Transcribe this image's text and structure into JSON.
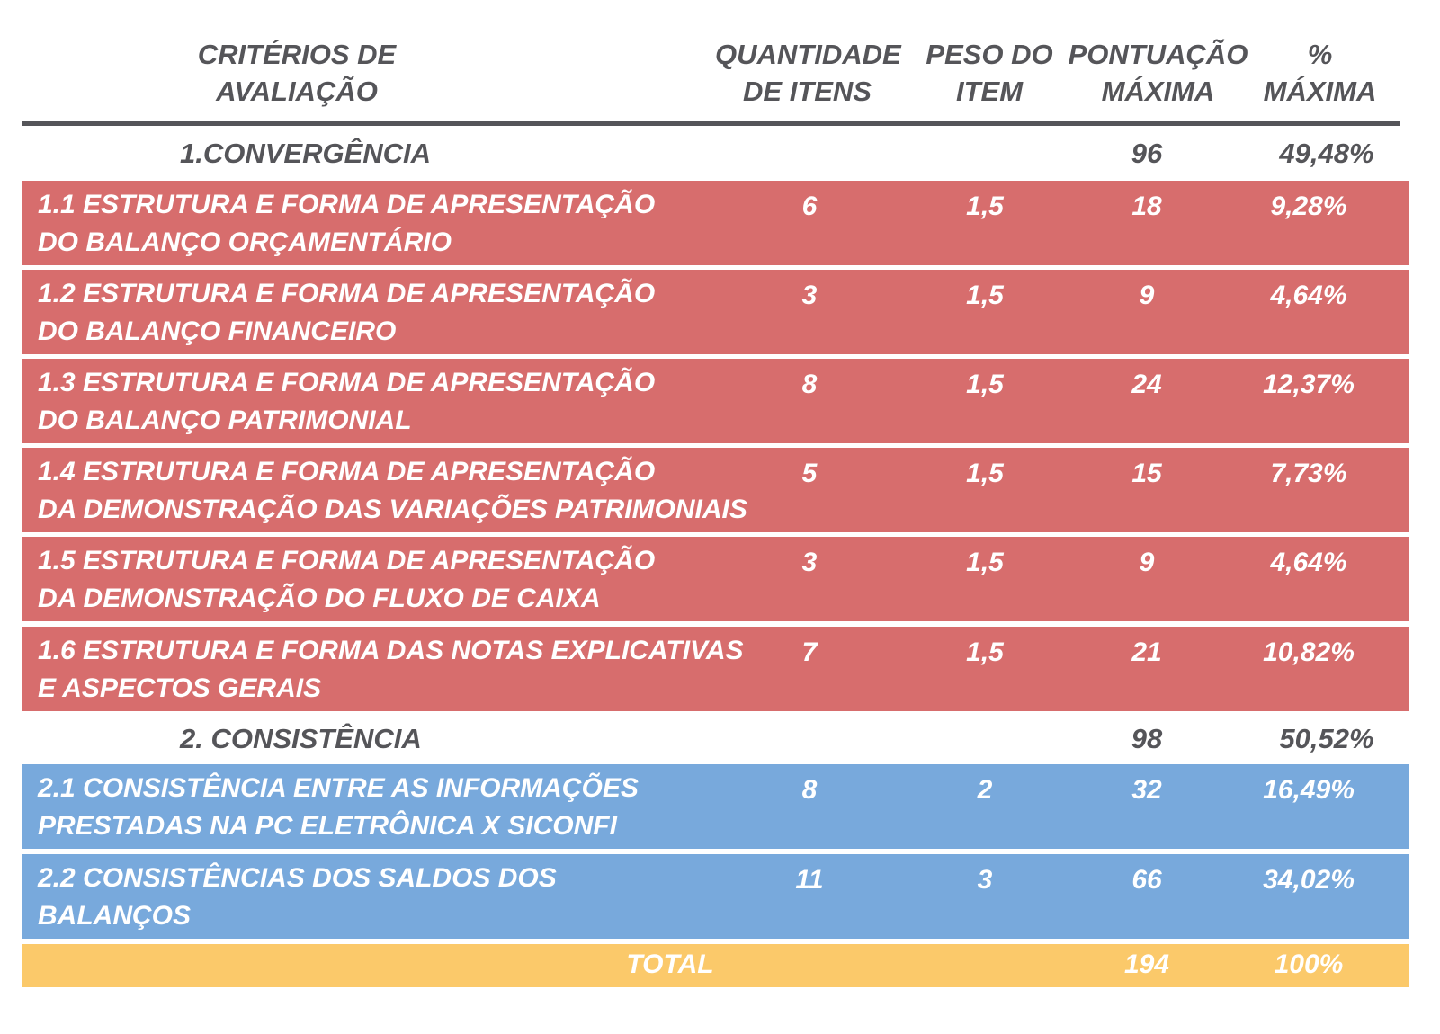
{
  "header": {
    "criterios": [
      "CRITÉRIOS DE",
      "AVALIAÇÃO"
    ],
    "quantidade": [
      "QUANTIDADE",
      "DE ITENS"
    ],
    "peso": [
      "PESO DO",
      "ITEM"
    ],
    "pontuacao": [
      "PONTUAÇÃO",
      "MÁXIMA"
    ],
    "percentual": [
      "%",
      "MÁXIMA"
    ]
  },
  "sections": [
    {
      "title": "1.CONVERGÊNCIA",
      "pontuacao": "96",
      "percentual": "49,48%",
      "color": "#d76d6d",
      "items": [
        {
          "line1": "1.1 ESTRUTURA E FORMA DE APRESENTAÇÃO",
          "line2": "DO BALANÇO ORÇAMENTÁRIO",
          "quantidade": "6",
          "peso": "1,5",
          "pontuacao": "18",
          "percentual": "9,28%"
        },
        {
          "line1": "1.2 ESTRUTURA E FORMA DE APRESENTAÇÃO",
          "line2": "DO BALANÇO FINANCEIRO",
          "quantidade": "3",
          "peso": "1,5",
          "pontuacao": "9",
          "percentual": "4,64%"
        },
        {
          "line1": "1.3 ESTRUTURA E FORMA DE APRESENTAÇÃO",
          "line2": "DO BALANÇO PATRIMONIAL",
          "quantidade": "8",
          "peso": "1,5",
          "pontuacao": "24",
          "percentual": "12,37%"
        },
        {
          "line1": "1.4 ESTRUTURA E FORMA DE APRESENTAÇÃO",
          "line2": "DA DEMONSTRAÇÃO DAS VARIAÇÕES PATRIMONIAIS",
          "quantidade": "5",
          "peso": "1,5",
          "pontuacao": "15",
          "percentual": "7,73%"
        },
        {
          "line1": "1.5 ESTRUTURA E FORMA DE APRESENTAÇÃO",
          "line2": "DA DEMONSTRAÇÃO DO FLUXO DE CAIXA",
          "quantidade": "3",
          "peso": "1,5",
          "pontuacao": "9",
          "percentual": "4,64%"
        },
        {
          "line1": "1.6 ESTRUTURA E FORMA DAS NOTAS EXPLICATIVAS",
          "line2": "E ASPECTOS GERAIS",
          "quantidade": "7",
          "peso": "1,5",
          "pontuacao": "21",
          "percentual": "10,82%"
        }
      ]
    },
    {
      "title": "2. CONSISTÊNCIA",
      "pontuacao": "98",
      "percentual": "50,52%",
      "color": "#78a9dc",
      "items": [
        {
          "line1": "2.1 CONSISTÊNCIA ENTRE AS INFORMAÇÕES",
          "line2": "PRESTADAS NA PC ELETRÔNICA X SICONFI",
          "quantidade": "8",
          "peso": "2",
          "pontuacao": "32",
          "percentual": "16,49%"
        },
        {
          "line1": "2.2 CONSISTÊNCIAS DOS SALDOS DOS",
          "line2": "BALANÇOS",
          "quantidade": "11",
          "peso": "3",
          "pontuacao": "66",
          "percentual": "34,02%"
        }
      ]
    }
  ],
  "total": {
    "label": "TOTAL",
    "pontuacao": "194",
    "percentual": "100%",
    "color": "#fbc96a"
  }
}
